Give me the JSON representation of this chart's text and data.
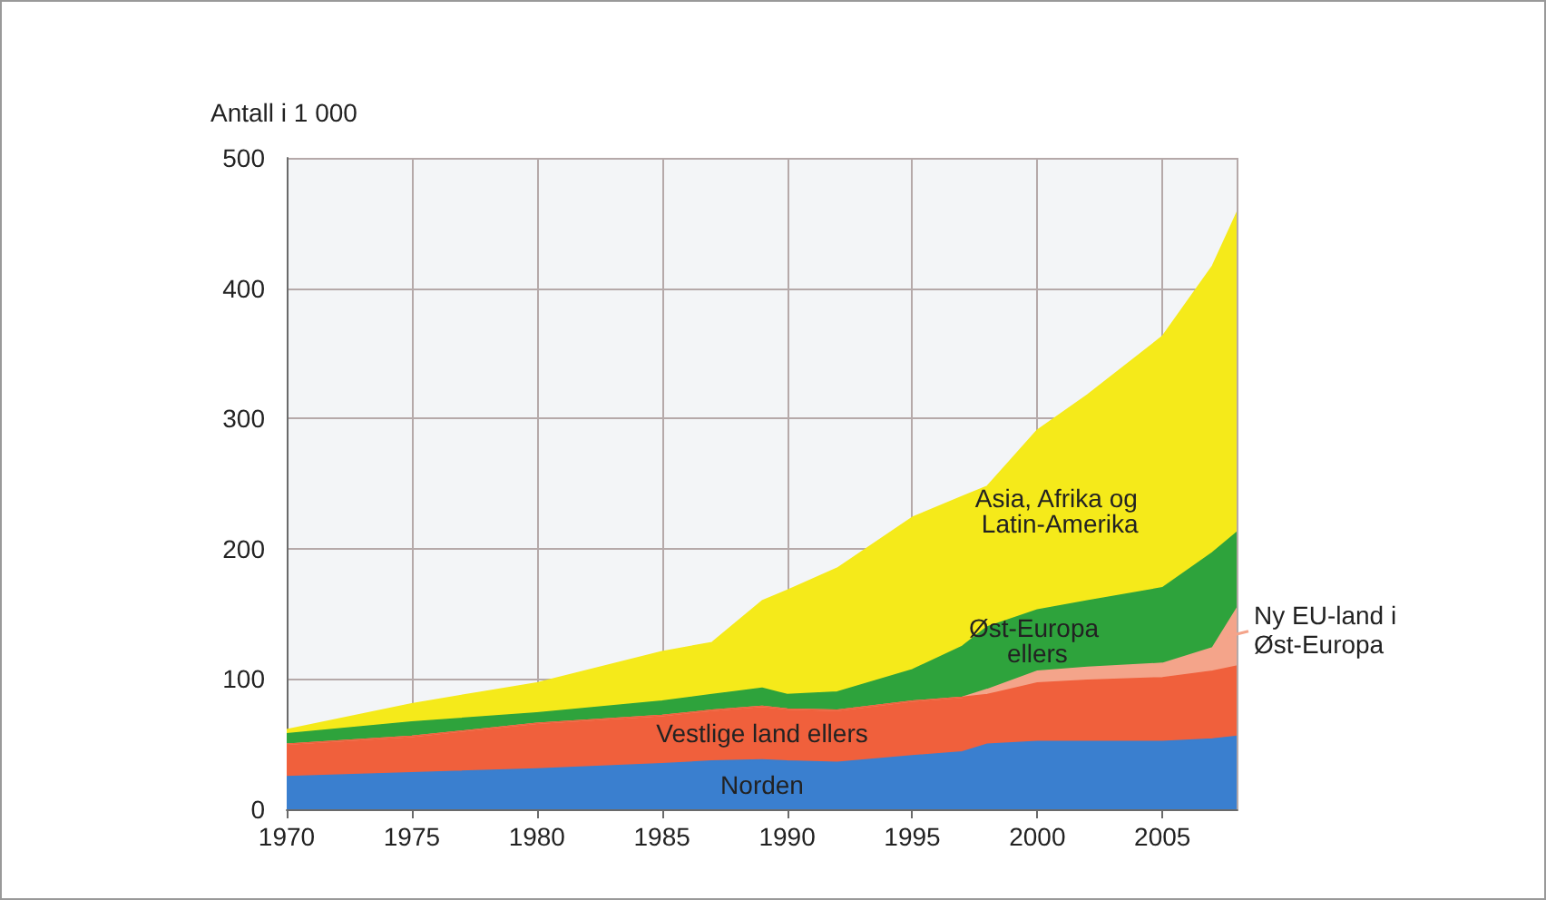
{
  "chart_data": {
    "type": "area",
    "stacked": true,
    "ylabel": "Antall i 1 000",
    "x": [
      1970,
      1975,
      1980,
      1985,
      1987,
      1989,
      1990,
      1992,
      1995,
      1997,
      1998,
      2000,
      2002,
      2005,
      2007,
      2008
    ],
    "series": [
      {
        "name": "Norden",
        "color": "#3a7fcf",
        "values": [
          25,
          28,
          31,
          35,
          37,
          38,
          37,
          36,
          41,
          44,
          50,
          52,
          52,
          52,
          54,
          56
        ]
      },
      {
        "name": "Vestlige land ellers",
        "color": "#f0603c",
        "values": [
          25,
          28,
          35,
          37,
          39,
          41,
          40,
          40,
          42,
          42,
          38,
          45,
          47,
          49,
          52,
          54
        ]
      },
      {
        "name": "Ny EU-land i Øst-Europa",
        "color": "#f4a48a",
        "values": [
          0,
          0,
          0,
          0,
          0,
          0,
          0,
          0,
          0,
          0,
          4,
          9,
          10,
          11,
          18,
          45
        ]
      },
      {
        "name": "Øst-Europa ellers",
        "color": "#2ea33c",
        "values": [
          8,
          11,
          8,
          11,
          12,
          14,
          11,
          14,
          24,
          39,
          48,
          47,
          51,
          58,
          73,
          58
        ]
      },
      {
        "name": "Asia, Afrika og Latin-Amerika",
        "color": "#f5ea1a",
        "values": [
          3,
          14,
          23,
          38,
          40,
          67,
          80,
          95,
          117,
          115,
          108,
          138,
          158,
          193,
          220,
          246
        ]
      }
    ],
    "xlim": [
      1970,
      2008
    ],
    "xticks": [
      1970,
      1975,
      1980,
      1985,
      1990,
      1995,
      2000,
      2005
    ],
    "ylim": [
      0,
      500
    ],
    "yticks": [
      0,
      100,
      200,
      300,
      400,
      500
    ],
    "grid": true
  }
}
